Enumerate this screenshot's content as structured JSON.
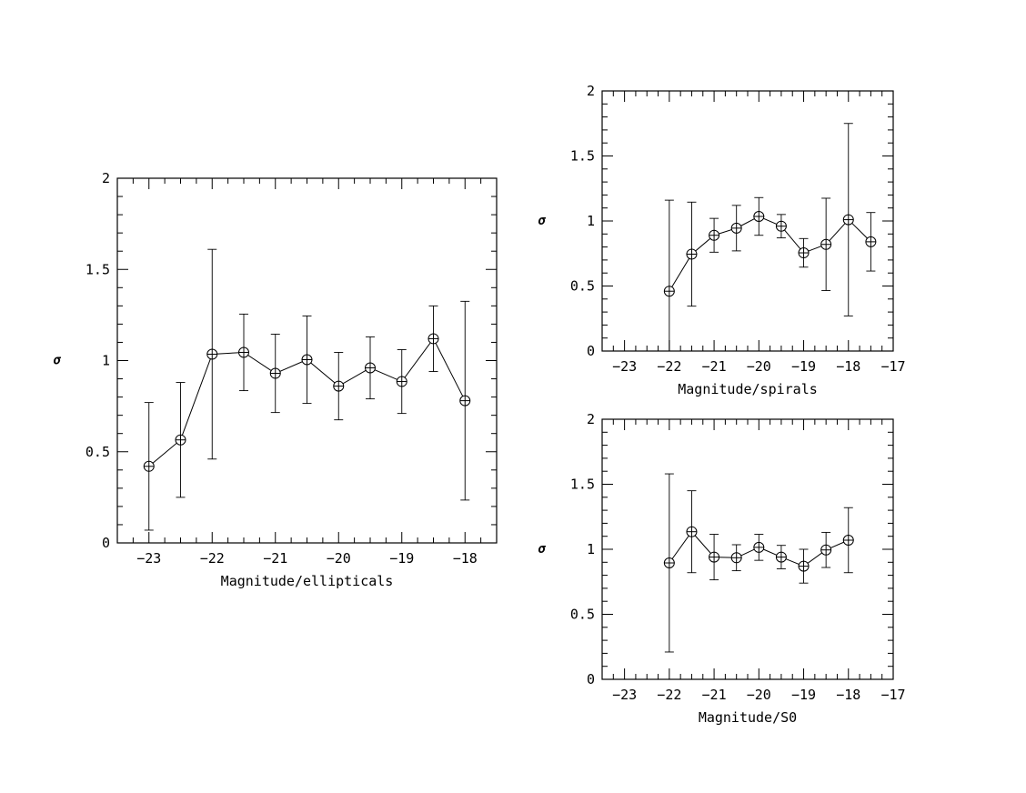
{
  "chart_data": [
    {
      "type": "line",
      "xlabel": "Magnitude/ellipticals",
      "ylabel": "σ",
      "xlim": [
        -23.5,
        -17.5
      ],
      "ylim": [
        0,
        2
      ],
      "xticks": [
        -23,
        -22,
        -21,
        -20,
        -19,
        -18
      ],
      "yticks": [
        0,
        0.5,
        1,
        1.5,
        2
      ],
      "grid": false,
      "series": [
        {
          "x": [
            -23,
            -22.5,
            -22,
            -21.5,
            -21,
            -20.5,
            -20,
            -19.5,
            -19,
            -18.5,
            -18
          ],
          "y": [
            0.42,
            0.565,
            1.035,
            1.045,
            0.93,
            1.005,
            0.86,
            0.96,
            0.885,
            1.12,
            0.78
          ],
          "err": [
            0.35,
            0.315,
            0.575,
            0.21,
            0.215,
            0.24,
            0.185,
            0.17,
            0.175,
            0.18,
            0.545
          ]
        }
      ]
    },
    {
      "type": "line",
      "xlabel": "Magnitude/spirals",
      "ylabel": "σ",
      "xlim": [
        -23.5,
        -17
      ],
      "ylim": [
        0,
        2
      ],
      "xticks": [
        -23,
        -22,
        -21,
        -20,
        -19,
        -18,
        -17
      ],
      "yticks": [
        0,
        0.5,
        1,
        1.5,
        2
      ],
      "grid": false,
      "series": [
        {
          "x": [
            -22,
            -21.5,
            -21,
            -20.5,
            -20,
            -19.5,
            -19,
            -18.5,
            -18,
            -17.5
          ],
          "y": [
            0.46,
            0.745,
            0.89,
            0.945,
            1.035,
            0.96,
            0.755,
            0.82,
            1.01,
            0.84
          ],
          "err": [
            0.7,
            0.4,
            0.13,
            0.175,
            0.145,
            0.09,
            0.11,
            0.355,
            0.74,
            0.225
          ]
        }
      ]
    },
    {
      "type": "line",
      "xlabel": "Magnitude/S0",
      "ylabel": "σ",
      "xlim": [
        -23.5,
        -17
      ],
      "ylim": [
        0,
        2
      ],
      "xticks": [
        -23,
        -22,
        -21,
        -20,
        -19,
        -18,
        -17
      ],
      "yticks": [
        0,
        0.5,
        1,
        1.5,
        2
      ],
      "grid": false,
      "series": [
        {
          "x": [
            -22,
            -21.5,
            -21,
            -20.5,
            -20,
            -19.5,
            -19,
            -18.5,
            -18
          ],
          "y": [
            0.895,
            1.135,
            0.94,
            0.935,
            1.015,
            0.94,
            0.87,
            0.995,
            1.07
          ],
          "err": [
            0.685,
            0.315,
            0.175,
            0.1,
            0.1,
            0.09,
            0.13,
            0.135,
            0.25
          ]
        }
      ]
    }
  ]
}
